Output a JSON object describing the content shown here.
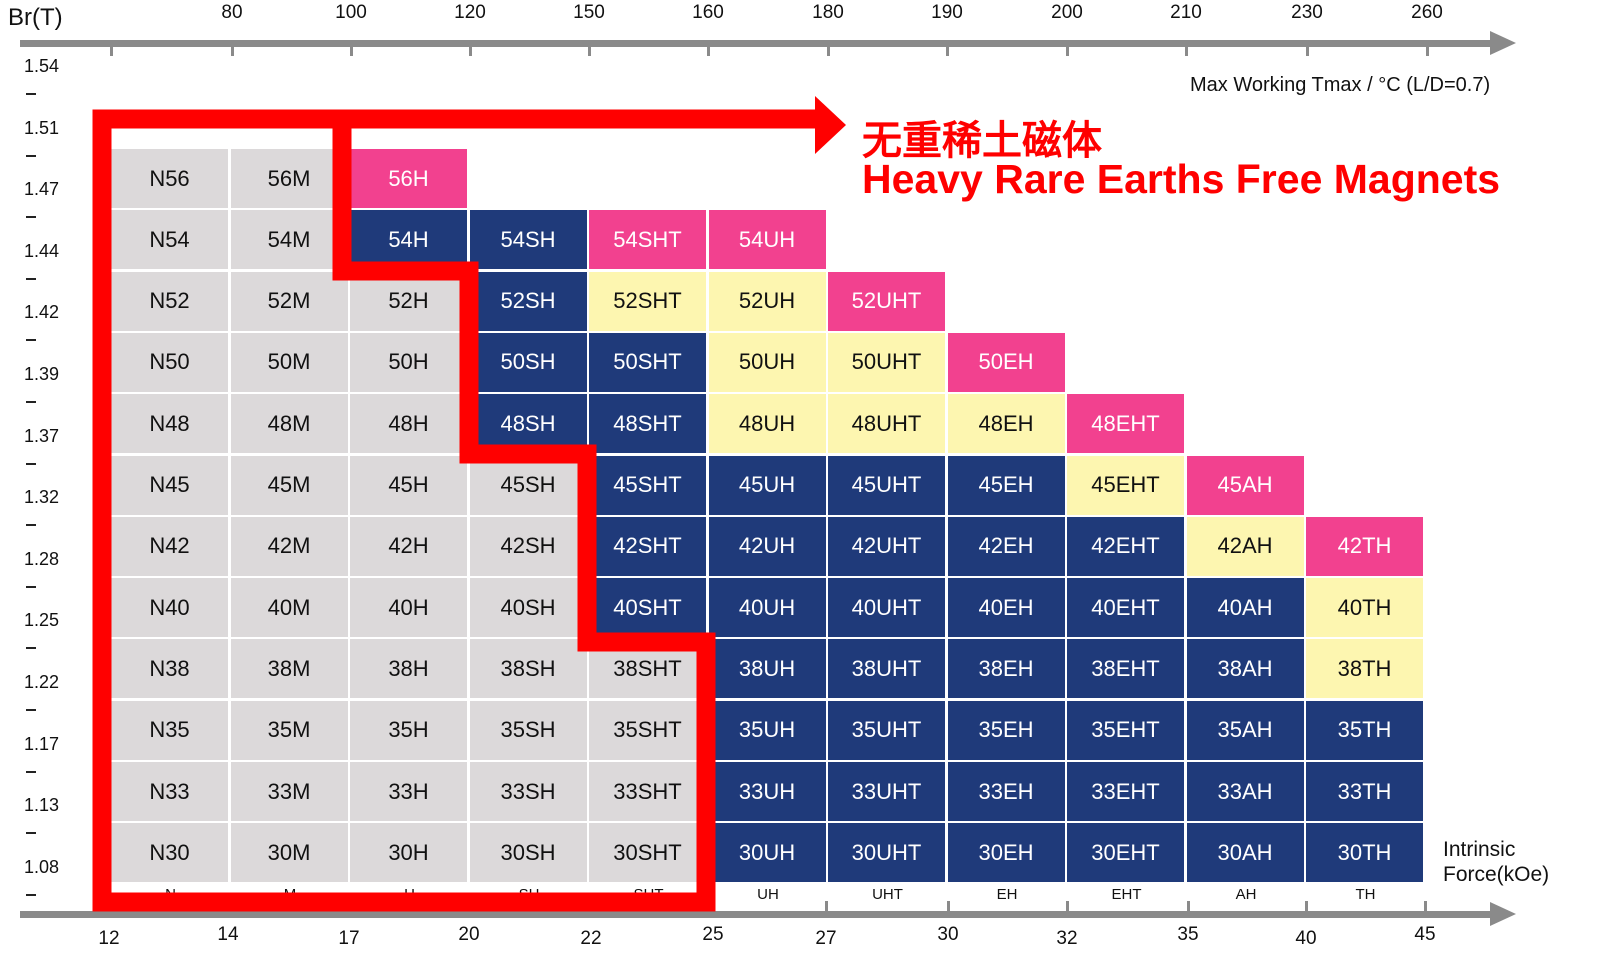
{
  "chart_data": {
    "type": "table",
    "title": "Heavy Rare Earths Free Magnets",
    "title_cn": "无重稀土磁体",
    "y_axis_label": "Br(T)",
    "top_axis_label": "Max Working Tmax / °C (L/D=0.7)",
    "bottom_axis_label": [
      "Intrinsic",
      "Force(kOe)"
    ],
    "br_ticks": [
      "1.54",
      "1.51",
      "1.47",
      "1.44",
      "1.42",
      "1.39",
      "1.37",
      "1.32",
      "1.28",
      "1.25",
      "1.22",
      "1.17",
      "1.13",
      "1.08"
    ],
    "tmax_ticks": [
      "80",
      "100",
      "120",
      "150",
      "160",
      "180",
      "190",
      "200",
      "210",
      "230",
      "260"
    ],
    "hcj_ticks": [
      "12",
      "14",
      "17",
      "20",
      "22",
      "25",
      "27",
      "30",
      "32",
      "35",
      "40",
      "45"
    ],
    "columns": [
      "N",
      "M",
      "H",
      "SH",
      "SHT",
      "UH",
      "UHT",
      "EH",
      "EHT",
      "AH",
      "TH"
    ],
    "legend_colors": {
      "g": "#dcd9da",
      "n": "#1f3a7a",
      "y": "#fdf6b0",
      "p": "#f2418f",
      "highlight": "#ff0000"
    },
    "rows": [
      {
        "cells": [
          [
            "N56",
            "g"
          ],
          [
            "56M",
            "g"
          ],
          [
            "56H",
            "p"
          ]
        ]
      },
      {
        "cells": [
          [
            "N54",
            "g"
          ],
          [
            "54M",
            "g"
          ],
          [
            "54H",
            "n"
          ],
          [
            "54SH",
            "n"
          ],
          [
            "54SHT",
            "p"
          ],
          [
            "54UH",
            "p"
          ]
        ]
      },
      {
        "cells": [
          [
            "N52",
            "g"
          ],
          [
            "52M",
            "g"
          ],
          [
            "52H",
            "g"
          ],
          [
            "52SH",
            "n"
          ],
          [
            "52SHT",
            "y"
          ],
          [
            "52UH",
            "y"
          ],
          [
            "52UHT",
            "p"
          ]
        ]
      },
      {
        "cells": [
          [
            "N50",
            "g"
          ],
          [
            "50M",
            "g"
          ],
          [
            "50H",
            "g"
          ],
          [
            "50SH",
            "n"
          ],
          [
            "50SHT",
            "n"
          ],
          [
            "50UH",
            "y"
          ],
          [
            "50UHT",
            "y"
          ],
          [
            "50EH",
            "p"
          ]
        ]
      },
      {
        "cells": [
          [
            "N48",
            "g"
          ],
          [
            "48M",
            "g"
          ],
          [
            "48H",
            "g"
          ],
          [
            "48SH",
            "n"
          ],
          [
            "48SHT",
            "n"
          ],
          [
            "48UH",
            "y"
          ],
          [
            "48UHT",
            "y"
          ],
          [
            "48EH",
            "y"
          ],
          [
            "48EHT",
            "p"
          ]
        ]
      },
      {
        "cells": [
          [
            "N45",
            "g"
          ],
          [
            "45M",
            "g"
          ],
          [
            "45H",
            "g"
          ],
          [
            "45SH",
            "g"
          ],
          [
            "45SHT",
            "n"
          ],
          [
            "45UH",
            "n"
          ],
          [
            "45UHT",
            "n"
          ],
          [
            "45EH",
            "n"
          ],
          [
            "45EHT",
            "y"
          ],
          [
            "45AH",
            "p"
          ]
        ]
      },
      {
        "cells": [
          [
            "N42",
            "g"
          ],
          [
            "42M",
            "g"
          ],
          [
            "42H",
            "g"
          ],
          [
            "42SH",
            "g"
          ],
          [
            "42SHT",
            "n"
          ],
          [
            "42UH",
            "n"
          ],
          [
            "42UHT",
            "n"
          ],
          [
            "42EH",
            "n"
          ],
          [
            "42EHT",
            "n"
          ],
          [
            "42AH",
            "y"
          ],
          [
            "42TH",
            "p"
          ]
        ]
      },
      {
        "cells": [
          [
            "N40",
            "g"
          ],
          [
            "40M",
            "g"
          ],
          [
            "40H",
            "g"
          ],
          [
            "40SH",
            "g"
          ],
          [
            "40SHT",
            "n"
          ],
          [
            "40UH",
            "n"
          ],
          [
            "40UHT",
            "n"
          ],
          [
            "40EH",
            "n"
          ],
          [
            "40EHT",
            "n"
          ],
          [
            "40AH",
            "n"
          ],
          [
            "40TH",
            "y"
          ]
        ]
      },
      {
        "cells": [
          [
            "N38",
            "g"
          ],
          [
            "38M",
            "g"
          ],
          [
            "38H",
            "g"
          ],
          [
            "38SH",
            "g"
          ],
          [
            "38SHT",
            "g"
          ],
          [
            "38UH",
            "n"
          ],
          [
            "38UHT",
            "n"
          ],
          [
            "38EH",
            "n"
          ],
          [
            "38EHT",
            "n"
          ],
          [
            "38AH",
            "n"
          ],
          [
            "38TH",
            "y"
          ]
        ]
      },
      {
        "cells": [
          [
            "N35",
            "g"
          ],
          [
            "35M",
            "g"
          ],
          [
            "35H",
            "g"
          ],
          [
            "35SH",
            "g"
          ],
          [
            "35SHT",
            "g"
          ],
          [
            "35UH",
            "n"
          ],
          [
            "35UHT",
            "n"
          ],
          [
            "35EH",
            "n"
          ],
          [
            "35EHT",
            "n"
          ],
          [
            "35AH",
            "n"
          ],
          [
            "35TH",
            "n"
          ]
        ]
      },
      {
        "cells": [
          [
            "N33",
            "g"
          ],
          [
            "33M",
            "g"
          ],
          [
            "33H",
            "g"
          ],
          [
            "33SH",
            "g"
          ],
          [
            "33SHT",
            "g"
          ],
          [
            "33UH",
            "n"
          ],
          [
            "33UHT",
            "n"
          ],
          [
            "33EH",
            "n"
          ],
          [
            "33EHT",
            "n"
          ],
          [
            "33AH",
            "n"
          ],
          [
            "33TH",
            "n"
          ]
        ]
      },
      {
        "cells": [
          [
            "N30",
            "g"
          ],
          [
            "30M",
            "g"
          ],
          [
            "30H",
            "g"
          ],
          [
            "30SH",
            "g"
          ],
          [
            "30SHT",
            "g"
          ],
          [
            "30UH",
            "n"
          ],
          [
            "30UHT",
            "n"
          ],
          [
            "30EH",
            "n"
          ],
          [
            "30EHT",
            "n"
          ],
          [
            "30AH",
            "n"
          ],
          [
            "30TH",
            "n"
          ]
        ]
      }
    ]
  }
}
